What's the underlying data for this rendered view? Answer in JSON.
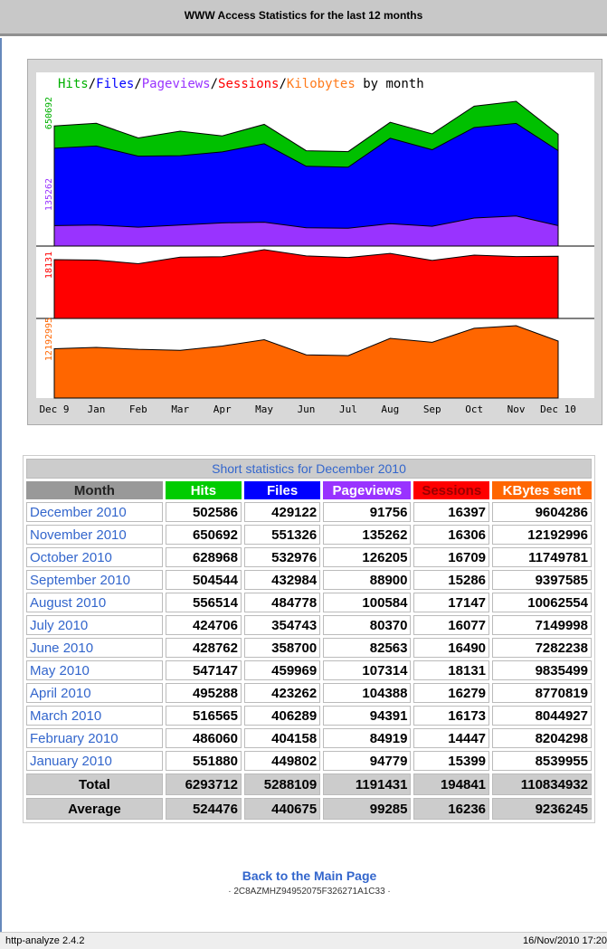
{
  "header": {
    "title": "WWW Access Statistics for the last 12 months"
  },
  "graph": {
    "title_parts": [
      {
        "text": "Hits",
        "color": "#00b000"
      },
      {
        "text": "/",
        "color": "#000000"
      },
      {
        "text": "Files",
        "color": "#0000ff"
      },
      {
        "text": "/",
        "color": "#000000"
      },
      {
        "text": "Pageviews",
        "color": "#9933ff"
      },
      {
        "text": "/",
        "color": "#000000"
      },
      {
        "text": "Sessions",
        "color": "#ff0000"
      },
      {
        "text": "/",
        "color": "#000000"
      },
      {
        "text": "Kilobytes",
        "color": "#ff7a1a"
      },
      {
        "text": " by month",
        "color": "#000000"
      }
    ],
    "axis_labels": [
      {
        "value": 650692,
        "color": "#00b000"
      },
      {
        "value": 135262,
        "color": "#9933ff"
      },
      {
        "value": 18131,
        "color": "#ff0000"
      },
      {
        "value": 12192995,
        "color": "#ff6600"
      }
    ],
    "months": [
      "Dec 9",
      "Jan",
      "Feb",
      "Mar",
      "Apr",
      "May",
      "Jun",
      "Jul",
      "Aug",
      "Sep",
      "Oct",
      "Nov",
      "Dec 10"
    ],
    "first_point": {
      "hits": 540000,
      "files": 440000,
      "pageviews": 92000,
      "sessions": 15500,
      "kbytes": 8300000
    },
    "colors": {
      "hits": "#00c000",
      "files": "#0000ff",
      "pageviews": "#9933ff",
      "sessions": "#ff0000",
      "kbytes": "#ff6600"
    }
  },
  "table": {
    "caption": "Short statistics for December 2010",
    "headers": [
      "Month",
      "Hits",
      "Files",
      "Pageviews",
      "Sessions",
      "KBytes sent"
    ],
    "rows": [
      [
        "December 2010",
        502586,
        429122,
        91756,
        16397,
        9604286
      ],
      [
        "November 2010",
        650692,
        551326,
        135262,
        16306,
        12192996
      ],
      [
        "October 2010",
        628968,
        532976,
        126205,
        16709,
        11749781
      ],
      [
        "September 2010",
        504544,
        432984,
        88900,
        15286,
        9397585
      ],
      [
        "August 2010",
        556514,
        484778,
        100584,
        17147,
        10062554
      ],
      [
        "July 2010",
        424706,
        354743,
        80370,
        16077,
        7149998
      ],
      [
        "June 2010",
        428762,
        358700,
        82563,
        16490,
        7282238
      ],
      [
        "May 2010",
        547147,
        459969,
        107314,
        18131,
        9835499
      ],
      [
        "April 2010",
        495288,
        423262,
        104388,
        16279,
        8770819
      ],
      [
        "March 2010",
        516565,
        406289,
        94391,
        16173,
        8044927
      ],
      [
        "February 2010",
        486060,
        404158,
        84919,
        14447,
        8204298
      ],
      [
        "January 2010",
        551880,
        449802,
        94779,
        15399,
        8539955
      ]
    ],
    "total": [
      "Total",
      6293712,
      5288109,
      1191431,
      194841,
      110834932
    ],
    "average": [
      "Average",
      524476,
      440675,
      99285,
      16236,
      9236245
    ]
  },
  "footer": {
    "link": "Back to the Main Page",
    "code": "· 2C8AZMHZ94952075F326271A1C33 ·",
    "software": "http-analyze 2.4.2",
    "date": "16/Nov/2010 17:20"
  }
}
